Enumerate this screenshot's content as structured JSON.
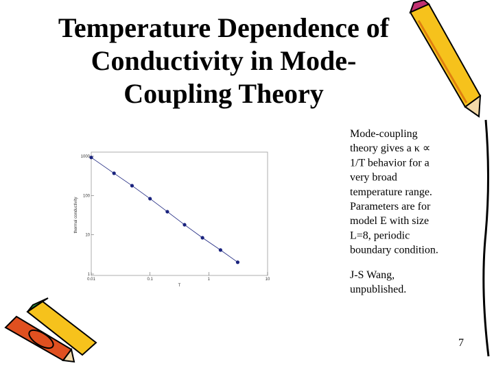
{
  "slide": {
    "title_lines": [
      "Temperature Dependence of",
      "Conductivity in Mode-",
      "Coupling Theory"
    ],
    "body_lines": [
      "Mode-coupling",
      "theory gives a κ ∝",
      "1/T behavior for a",
      "very broad",
      "temperature range.",
      "Parameters are for",
      "model E with size",
      "L=8, periodic",
      "boundary condition."
    ],
    "credit_lines": [
      "J-S Wang,",
      "unpublished."
    ],
    "page_number": "7"
  },
  "chart_data": {
    "type": "line",
    "x_label": "T",
    "y_label": "thermal conductivity",
    "x": [
      0.01,
      0.0244,
      0.0494,
      0.1,
      0.197,
      0.387,
      0.78,
      1.58,
      3.1
    ],
    "series": [
      {
        "color": "#1a237e",
        "values": [
          930,
          368,
          178,
          83,
          38.7,
          18,
          8.4,
          4.1,
          2.0
        ]
      }
    ],
    "xlim": [
      0.01,
      10
    ],
    "ylim": [
      1,
      1000
    ],
    "xticks": [
      0.01,
      0.1,
      1,
      10
    ],
    "yticks": [
      1,
      10,
      100,
      1000
    ],
    "xscale": "log",
    "yscale": "log",
    "markers": true
  }
}
